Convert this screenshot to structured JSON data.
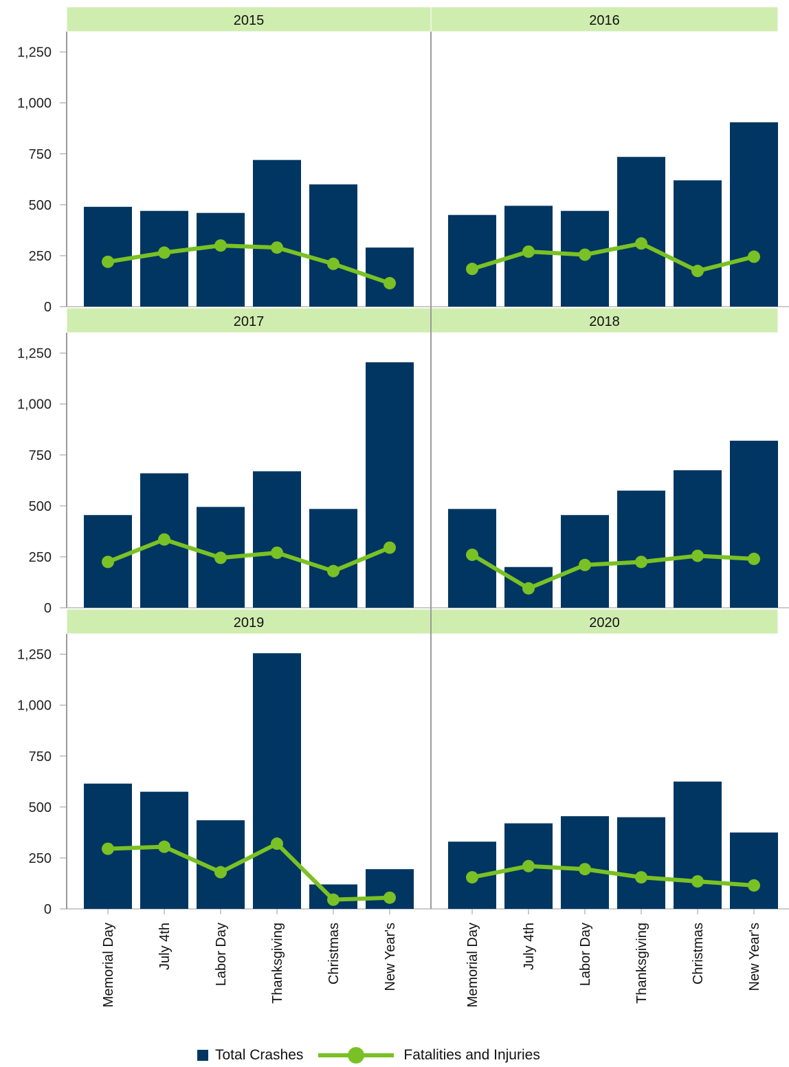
{
  "chart_data": {
    "type": "bar",
    "categories": [
      "Memorial Day",
      "July 4th",
      "Labor Day",
      "Thanksgiving",
      "Christmas",
      "New Year's"
    ],
    "y_ticks": [
      "0",
      "250",
      "500",
      "750",
      "1,000",
      "1,250"
    ],
    "ylim": [
      0,
      1350
    ],
    "colors": {
      "bars": "#003661",
      "line": "#7ac125",
      "header": "#d0edb0"
    },
    "legend": {
      "position": "bottom",
      "bar_label": "Total Crashes",
      "line_label": "Fatalities and Injuries"
    },
    "panels": [
      {
        "year": "2015",
        "total_crashes": [
          490,
          470,
          460,
          720,
          600,
          290
        ],
        "fatalities_injuries": [
          220,
          265,
          300,
          290,
          210,
          115
        ]
      },
      {
        "year": "2016",
        "total_crashes": [
          450,
          495,
          470,
          735,
          620,
          905
        ],
        "fatalities_injuries": [
          185,
          270,
          255,
          310,
          175,
          245
        ]
      },
      {
        "year": "2017",
        "total_crashes": [
          455,
          660,
          495,
          670,
          485,
          1205
        ],
        "fatalities_injuries": [
          225,
          335,
          245,
          270,
          180,
          295
        ]
      },
      {
        "year": "2018",
        "total_crashes": [
          485,
          200,
          455,
          575,
          675,
          820
        ],
        "fatalities_injuries": [
          260,
          95,
          210,
          225,
          255,
          240
        ]
      },
      {
        "year": "2019",
        "total_crashes": [
          615,
          575,
          435,
          1255,
          120,
          195
        ],
        "fatalities_injuries": [
          295,
          305,
          180,
          320,
          45,
          55
        ]
      },
      {
        "year": "2020",
        "total_crashes": [
          330,
          420,
          455,
          450,
          625,
          375
        ],
        "fatalities_injuries": [
          155,
          210,
          195,
          155,
          135,
          115
        ]
      }
    ]
  }
}
